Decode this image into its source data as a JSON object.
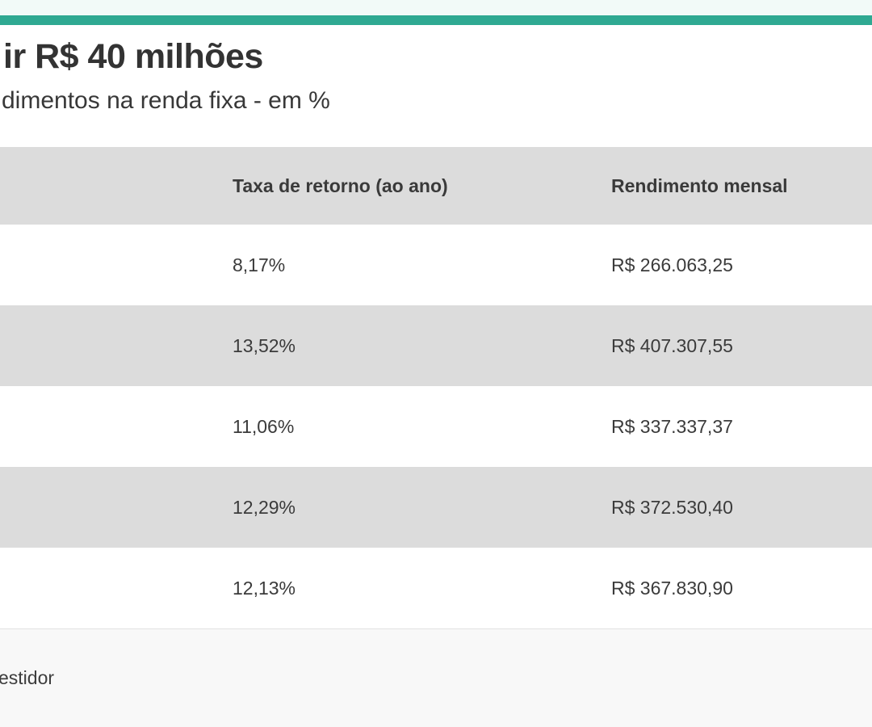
{
  "accent_color": "#2fa992",
  "header": {
    "title": "ir R$ 40 milhões",
    "subtitle": "dimentos na renda fixa - em %"
  },
  "table": {
    "columns": {
      "col1": "",
      "col2": "Taxa de retorno (ao ano)",
      "col3": "Rendimento mensal"
    },
    "rows": [
      {
        "label": "",
        "taxa": "8,17%",
        "rendimento": "R$ 266.063,25"
      },
      {
        "label": "",
        "taxa": "13,52%",
        "rendimento": "R$ 407.307,55"
      },
      {
        "label": "",
        "taxa": "11,06%",
        "rendimento": "R$ 337.337,37"
      },
      {
        "label": "",
        "taxa": "12,29%",
        "rendimento": "R$ 372.530,40"
      },
      {
        "label": ")",
        "taxa": "12,13%",
        "rendimento": "R$ 367.830,90"
      }
    ]
  },
  "footer": {
    "source": "estidor"
  },
  "chart_data": {
    "type": "table",
    "title": "ir R$ 40 milhões",
    "subtitle": "dimentos na renda fixa - em %",
    "columns": [
      "",
      "Taxa de retorno (ao ano)",
      "Rendimento mensal"
    ],
    "rows": [
      [
        "",
        "8,17%",
        "R$ 266.063,25"
      ],
      [
        "",
        "13,52%",
        "R$ 407.307,55"
      ],
      [
        "",
        "11,06%",
        "R$ 337.337,37"
      ],
      [
        "",
        "12,29%",
        "R$ 372.530,40"
      ],
      [
        ")",
        "12,13%",
        "R$ 367.830,90"
      ]
    ],
    "taxa_values_percent": [
      8.17,
      13.52,
      11.06,
      12.29,
      12.13
    ],
    "rendimento_values_brl": [
      266063.25,
      407307.55,
      337337.37,
      372530.4,
      367830.9
    ],
    "source_note": "estidor",
    "layout": "alternating-row table, header row gray, left column cropped off-screen"
  }
}
